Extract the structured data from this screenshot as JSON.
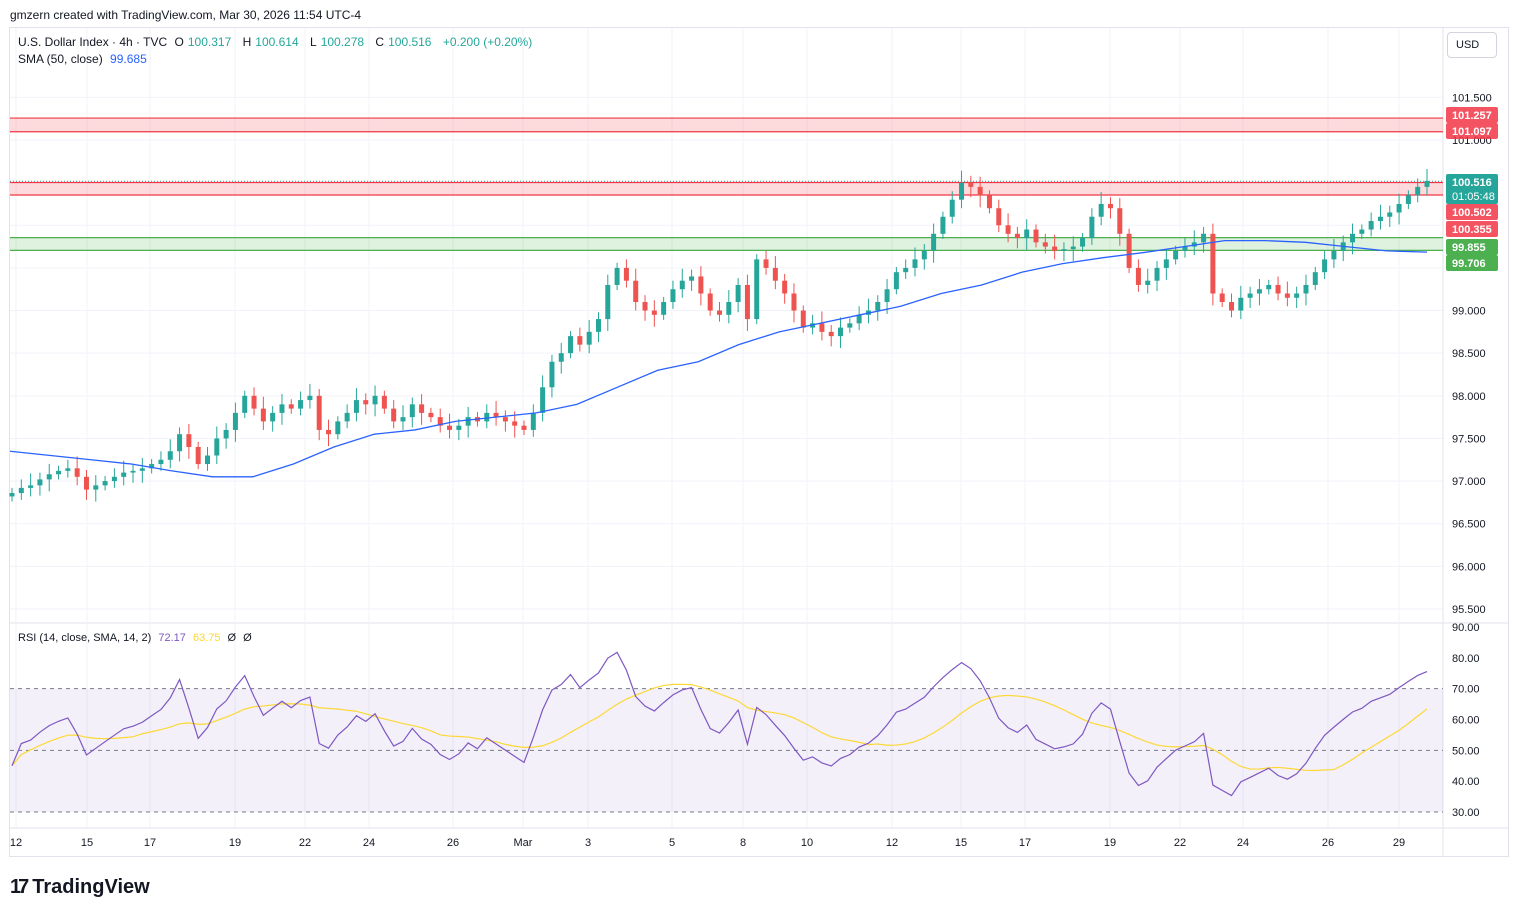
{
  "header": {
    "text": "gmzern created with TradingView.com, Mar 30, 2026 11:54 UTC-4"
  },
  "legend": {
    "symbol": "U.S. Dollar Index · 4h · TVC",
    "o_label": "O",
    "o_value": "100.317",
    "h_label": "H",
    "h_value": "100.614",
    "l_label": "L",
    "l_value": "100.278",
    "c_label": "C",
    "c_value": "100.516",
    "change": "+0.200 (+0.20%)",
    "sma_label": "SMA (50, close)",
    "sma_value": "99.685"
  },
  "rsi_legend": {
    "label": "RSI (14, close, SMA, 14, 2)",
    "rsi_value": "72.17",
    "sma_value": "63.75",
    "extra1": "Ø",
    "extra2": "Ø"
  },
  "currency_button": "USD",
  "footer": {
    "brand": "TradingView"
  },
  "colors": {
    "up": "#26a69a",
    "down": "#ef5350",
    "sma": "#2962ff",
    "rsi": "#7e57c2",
    "rsi_sma": "#fdd835",
    "resistance": "#f23645",
    "support": "#4caf50"
  },
  "chart_data": {
    "type": "candlestick",
    "price_axis": {
      "ticks": [
        "101.500",
        "101.000",
        "99.000",
        "98.500",
        "98.000",
        "97.500",
        "97.000",
        "96.500",
        "96.000",
        "95.500"
      ],
      "range": [
        95.4,
        102.0
      ]
    },
    "time_axis": {
      "ticks": [
        "12",
        "15",
        "17",
        "19",
        "22",
        "24",
        "26",
        "Mar",
        "3",
        "5",
        "8",
        "10",
        "12",
        "15",
        "17",
        "19",
        "22",
        "24",
        "26",
        "29"
      ]
    },
    "price_labels": [
      {
        "value": "101.257",
        "kind": "resistance"
      },
      {
        "value": "101.097",
        "kind": "resistance"
      },
      {
        "value": "100.516",
        "kind": "last",
        "countdown": "01:05:48"
      },
      {
        "value": "100.502",
        "kind": "resistance"
      },
      {
        "value": "100.355",
        "kind": "resistance"
      },
      {
        "value": "99.855",
        "kind": "support"
      },
      {
        "value": "99.706",
        "kind": "support"
      }
    ],
    "zones": [
      {
        "kind": "resistance",
        "from": 101.097,
        "to": 101.257
      },
      {
        "kind": "resistance",
        "from": 100.355,
        "to": 100.502
      },
      {
        "kind": "support",
        "from": 99.706,
        "to": 99.855
      }
    ],
    "closes": [
      96.86,
      96.92,
      96.95,
      97.02,
      97.08,
      97.12,
      97.15,
      97.05,
      96.9,
      96.95,
      97.0,
      97.05,
      97.1,
      97.12,
      97.15,
      97.2,
      97.25,
      97.35,
      97.55,
      97.4,
      97.2,
      97.3,
      97.5,
      97.6,
      97.8,
      98.0,
      97.85,
      97.7,
      97.8,
      97.9,
      97.85,
      97.95,
      98.0,
      97.6,
      97.55,
      97.7,
      97.8,
      97.95,
      97.9,
      98.0,
      97.85,
      97.7,
      97.75,
      97.9,
      97.8,
      97.75,
      97.65,
      97.6,
      97.65,
      97.75,
      97.7,
      97.8,
      97.75,
      97.7,
      97.65,
      97.6,
      97.8,
      98.1,
      98.4,
      98.5,
      98.7,
      98.6,
      98.75,
      98.9,
      99.3,
      99.5,
      99.35,
      99.1,
      99.0,
      98.95,
      99.1,
      99.25,
      99.35,
      99.4,
      99.2,
      99.0,
      98.95,
      99.1,
      99.3,
      98.9,
      99.6,
      99.5,
      99.35,
      99.2,
      99.0,
      98.8,
      98.85,
      98.75,
      98.7,
      98.8,
      98.85,
      98.95,
      99.0,
      99.1,
      99.25,
      99.45,
      99.5,
      99.6,
      99.7,
      99.9,
      100.1,
      100.3,
      100.5,
      100.45,
      100.35,
      100.2,
      100.0,
      99.9,
      99.85,
      99.95,
      99.8,
      99.75,
      99.7,
      99.72,
      99.75,
      99.85,
      100.1,
      100.25,
      100.2,
      99.9,
      99.5,
      99.3,
      99.35,
      99.5,
      99.6,
      99.7,
      99.75,
      99.8,
      99.9,
      99.2,
      99.1,
      99.0,
      99.15,
      99.2,
      99.25,
      99.3,
      99.2,
      99.15,
      99.2,
      99.3,
      99.45,
      99.6,
      99.7,
      99.8,
      99.9,
      99.95,
      100.05,
      100.1,
      100.15,
      100.25,
      100.35,
      100.45,
      100.52
    ],
    "sma50": [
      97.35,
      97.3,
      97.25,
      97.2,
      97.12,
      97.05,
      97.05,
      97.2,
      97.4,
      97.55,
      97.6,
      97.7,
      97.75,
      97.8,
      97.9,
      98.1,
      98.3,
      98.4,
      98.6,
      98.75,
      98.85,
      98.95,
      99.05,
      99.2,
      99.3,
      99.45,
      99.55,
      99.62,
      99.68,
      99.75,
      99.82,
      99.82,
      99.8,
      99.75,
      99.7,
      99.685
    ],
    "rsi": {
      "ticks": [
        "90.00",
        "80.00",
        "70.00",
        "60.00",
        "50.00",
        "40.00",
        "30.00"
      ],
      "overbought": 70,
      "oversold": 30,
      "last": 72.17,
      "sma_last": 63.75
    }
  }
}
